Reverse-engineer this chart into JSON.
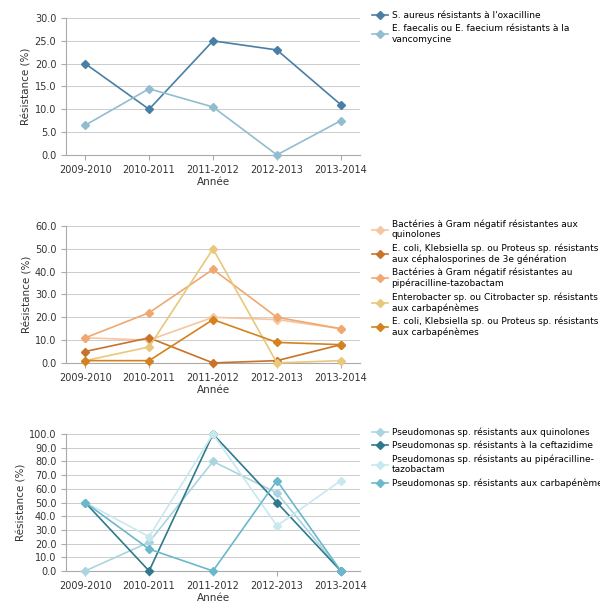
{
  "years": [
    "2009-2010",
    "2010-2011",
    "2011-2012",
    "2012-2013",
    "2013-2014"
  ],
  "panel1": {
    "ylabel": "Résistance (%)",
    "xlabel": "Année",
    "ylim": [
      0,
      30
    ],
    "yticks": [
      0.0,
      5.0,
      10.0,
      15.0,
      20.0,
      25.0,
      30.0
    ],
    "series": [
      {
        "label": "S. aureus résistants à l'oxacilline",
        "values": [
          20.0,
          10.0,
          25.0,
          23.0,
          11.0
        ],
        "color": "#4a7fa5",
        "marker": "D",
        "linewidth": 1.2,
        "markersize": 4
      },
      {
        "label": "E. faecalis ou E. faecium résistants à la\nvancomycine",
        "values": [
          6.5,
          14.5,
          10.5,
          0.0,
          7.5
        ],
        "color": "#92bdd0",
        "marker": "D",
        "linewidth": 1.2,
        "markersize": 4
      }
    ]
  },
  "panel2": {
    "ylabel": "Résistance (%)",
    "xlabel": "Année",
    "ylim": [
      0,
      60
    ],
    "yticks": [
      0.0,
      10.0,
      20.0,
      30.0,
      40.0,
      50.0,
      60.0
    ],
    "series": [
      {
        "label": "Bactéries à Gram négatif résistantes aux\nquinolones",
        "values": [
          11.0,
          10.0,
          20.0,
          19.0,
          15.0
        ],
        "color": "#f5c6a0",
        "marker": "D",
        "linewidth": 1.2,
        "markersize": 4
      },
      {
        "label": "E. coli, Klebsiella sp. ou Proteus sp. résistants\naux céphalosporines de 3e génération",
        "values": [
          5.0,
          11.0,
          0.0,
          1.0,
          8.0
        ],
        "color": "#c8722a",
        "marker": "D",
        "linewidth": 1.2,
        "markersize": 4
      },
      {
        "label": "Bactéries à Gram négatif résistantes au\npipéracilline-tazobactam",
        "values": [
          11.0,
          22.0,
          41.0,
          20.0,
          15.0
        ],
        "color": "#f0a870",
        "marker": "D",
        "linewidth": 1.2,
        "markersize": 4
      },
      {
        "label": "Enterobacter sp. ou Citrobacter sp. résistants\naux carbapénèmes",
        "values": [
          1.0,
          7.0,
          50.0,
          0.0,
          1.0
        ],
        "color": "#e8c87a",
        "marker": "D",
        "linewidth": 1.2,
        "markersize": 4
      },
      {
        "label": "E. coli, Klebsiella sp. ou Proteus sp. résistants\naux carbapénèmes",
        "values": [
          1.0,
          1.0,
          19.0,
          9.0,
          8.0
        ],
        "color": "#d4821e",
        "marker": "D",
        "linewidth": 1.2,
        "markersize": 4
      }
    ]
  },
  "panel3": {
    "ylabel": "Résistance (%)",
    "xlabel": "Année",
    "ylim": [
      0,
      100
    ],
    "yticks": [
      0.0,
      10.0,
      20.0,
      30.0,
      40.0,
      50.0,
      60.0,
      70.0,
      80.0,
      90.0,
      100.0
    ],
    "series": [
      {
        "label": "Pseudomonas sp. résistants aux quinolones",
        "values": [
          0.0,
          21.0,
          80.0,
          57.0,
          0.0
        ],
        "color": "#aad4e0",
        "marker": "D",
        "linewidth": 1.2,
        "markersize": 4
      },
      {
        "label": "Pseudomonas sp. résistants à la ceftazidime",
        "values": [
          50.0,
          0.0,
          100.0,
          50.0,
          0.0
        ],
        "color": "#2e7a8c",
        "marker": "D",
        "linewidth": 1.2,
        "markersize": 4
      },
      {
        "label": "Pseudomonas sp. résistants au pipéracilline-\ntazobactam",
        "values": [
          50.0,
          25.0,
          100.0,
          33.0,
          66.0
        ],
        "color": "#c8e8f0",
        "marker": "D",
        "linewidth": 1.2,
        "markersize": 4
      },
      {
        "label": "Pseudomonas sp. résistants aux carbapénèmes",
        "values": [
          50.0,
          16.0,
          0.0,
          66.0,
          0.0
        ],
        "color": "#6ab8cc",
        "marker": "D",
        "linewidth": 1.2,
        "markersize": 4
      }
    ]
  },
  "bg_color": "#ffffff",
  "plot_bg_color": "#ffffff",
  "grid_color": "#cccccc",
  "legend_fontsize": 6.5,
  "label_fontsize": 7.5,
  "tick_fontsize": 7.0,
  "axis_color": "#aaaaaa"
}
